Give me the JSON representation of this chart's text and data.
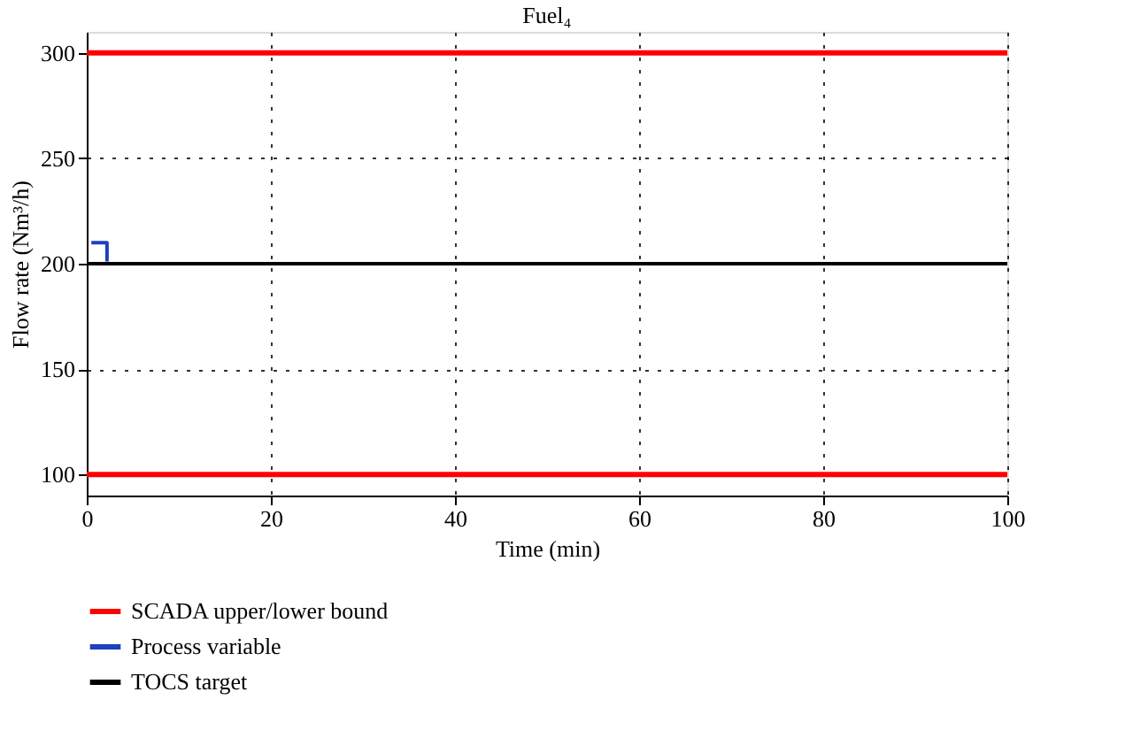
{
  "chart_data": {
    "type": "line",
    "title": "Fuel₄",
    "xlabel": "Time (min)",
    "ylabel": "Flow rate (Nm³/h)",
    "series": [
      {
        "name": "SCADA upper/lower bound",
        "color": "#ff0000",
        "x": [
          0,
          100
        ],
        "values": [
          300,
          300
        ]
      },
      {
        "color": "#ff0000",
        "x": [
          0,
          100
        ],
        "values": [
          100,
          100
        ]
      },
      {
        "name": "TOCS target",
        "color": "#000000",
        "x": [
          0,
          100
        ],
        "values": [
          200,
          200
        ]
      },
      {
        "name": "Process variable",
        "color": "#1f3fbf",
        "x": [
          0.5,
          2.2,
          2.2
        ],
        "values": [
          210,
          210,
          201
        ]
      }
    ],
    "xlim": [
      0,
      100
    ],
    "xticks": [
      0,
      20,
      40,
      60,
      80,
      100
    ],
    "ylim": [
      90,
      310
    ],
    "yticks": [
      100,
      150,
      200,
      250,
      300
    ],
    "grid": true,
    "legend": "bottom",
    "line_style": "solid",
    "marker": "none"
  }
}
